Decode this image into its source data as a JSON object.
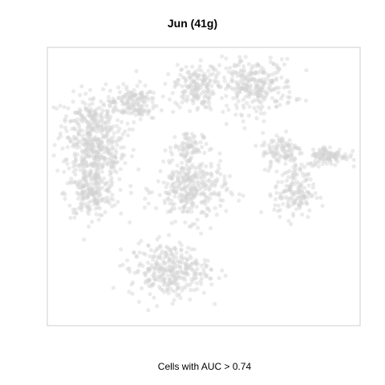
{
  "chart_data": {
    "type": "scatter",
    "title": "Jun (41g)",
    "xlabel": "Cells with AUC > 0.74",
    "ylabel": "",
    "axes_visible": false,
    "grid": false,
    "legend": "none",
    "point_color": "#d3d3d3",
    "point_opacity": 0.45,
    "frame_color": "#cfcfcf",
    "xlim": [
      0,
      100
    ],
    "ylim": [
      0,
      100
    ],
    "point_count_estimate": 2600,
    "clusters": [
      {
        "name": "left-upper",
        "center": [
          14,
          72
        ],
        "spread": [
          6,
          7
        ],
        "share": 0.09
      },
      {
        "name": "left-mid",
        "center": [
          16,
          60
        ],
        "spread": [
          6,
          6
        ],
        "share": 0.1
      },
      {
        "name": "left-lower",
        "center": [
          14,
          47
        ],
        "spread": [
          5,
          5
        ],
        "share": 0.07
      },
      {
        "name": "upper-center",
        "center": [
          47,
          86
        ],
        "spread": [
          4,
          5
        ],
        "share": 0.06
      },
      {
        "name": "upper-right",
        "center": [
          66,
          86
        ],
        "spread": [
          8,
          6
        ],
        "share": 0.11
      },
      {
        "name": "center",
        "center": [
          46,
          49
        ],
        "spread": [
          7,
          7
        ],
        "share": 0.12
      },
      {
        "name": "center-upper",
        "center": [
          45,
          64
        ],
        "spread": [
          3,
          4
        ],
        "share": 0.03
      },
      {
        "name": "right",
        "center": [
          79,
          48
        ],
        "spread": [
          4,
          6
        ],
        "share": 0.06
      },
      {
        "name": "right-mid",
        "center": [
          75,
          63
        ],
        "spread": [
          4,
          4
        ],
        "share": 0.04
      },
      {
        "name": "far-right",
        "center": [
          90,
          61
        ],
        "spread": [
          4,
          2.2
        ],
        "share": 0.04
      },
      {
        "name": "bottom",
        "center": [
          39,
          20
        ],
        "spread": [
          8,
          6
        ],
        "share": 0.12
      },
      {
        "name": "upper-left",
        "center": [
          27,
          80
        ],
        "spread": [
          5,
          4
        ],
        "share": 0.06
      }
    ]
  }
}
